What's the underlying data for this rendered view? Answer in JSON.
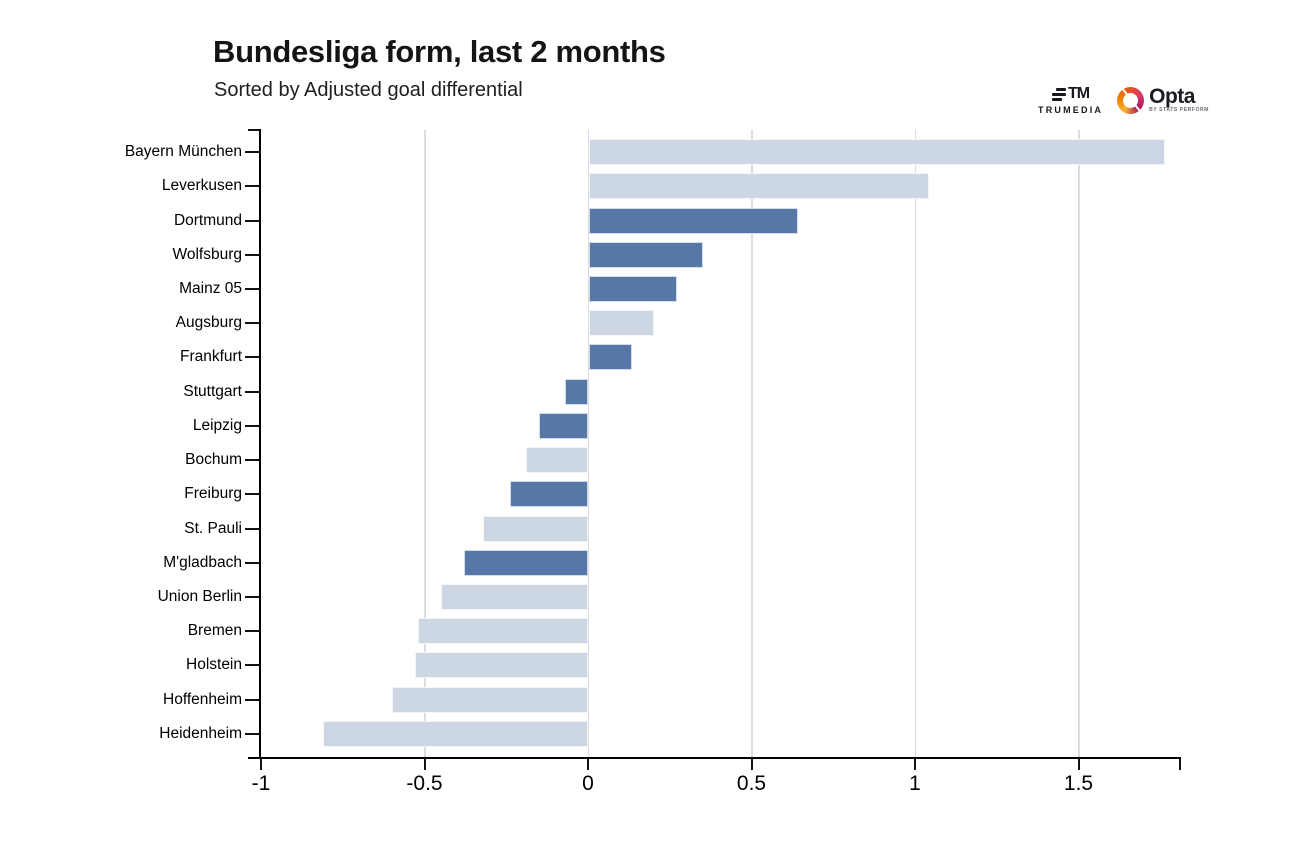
{
  "header": {
    "title": "Bundesliga form, last 2 months",
    "subtitle": "Sorted by Adjusted goal differential"
  },
  "branding": {
    "trumedia_glyph": "TM",
    "trumedia_label": "TRUMEDIA",
    "opta_label": "Opta",
    "opta_tagline": "BY STATS PERFORM"
  },
  "colors": {
    "bar_light": "#cdd7e4",
    "bar_dark": "#5778a6",
    "grid": "#dcdcdc",
    "axis": "#000000",
    "opta_gradient": [
      "#f9b233",
      "#ef7d00",
      "#e94e1b",
      "#a3195b"
    ]
  },
  "chart_data": {
    "type": "bar",
    "orientation": "horizontal",
    "title": "Bundesliga form, last 2 months",
    "subtitle": "Sorted by Adjusted goal differential",
    "xlabel": "",
    "ylabel": "",
    "xlim": [
      -1.05,
      1.81
    ],
    "x_ticks": [
      -1,
      -0.5,
      0,
      0.5,
      1,
      1.5
    ],
    "x_tick_labels": [
      "-1",
      "-0.5",
      "0",
      "0.5",
      "1",
      "1.5"
    ],
    "gridlines_at": [
      -0.5,
      0,
      0.5,
      1,
      1.5
    ],
    "grid": true,
    "legend": false,
    "categories": [
      "Bayern München",
      "Leverkusen",
      "Dortmund",
      "Wolfsburg",
      "Mainz 05",
      "Augsburg",
      "Frankfurt",
      "Stuttgart",
      "Leipzig",
      "Bochum",
      "Freiburg",
      "St. Pauli",
      "M'gladbach",
      "Union Berlin",
      "Bremen",
      "Holstein",
      "Hoffenheim",
      "Heidenheim"
    ],
    "values": [
      1.76,
      1.04,
      0.64,
      0.35,
      0.27,
      0.2,
      0.13,
      -0.07,
      -0.15,
      -0.19,
      -0.24,
      -0.32,
      -0.38,
      -0.45,
      -0.52,
      -0.53,
      -0.6,
      -0.81
    ],
    "bar_shades": [
      "light",
      "light",
      "dark",
      "dark",
      "dark",
      "light",
      "dark",
      "dark",
      "dark",
      "light",
      "dark",
      "light",
      "dark",
      "light",
      "light",
      "light",
      "light",
      "light"
    ]
  }
}
